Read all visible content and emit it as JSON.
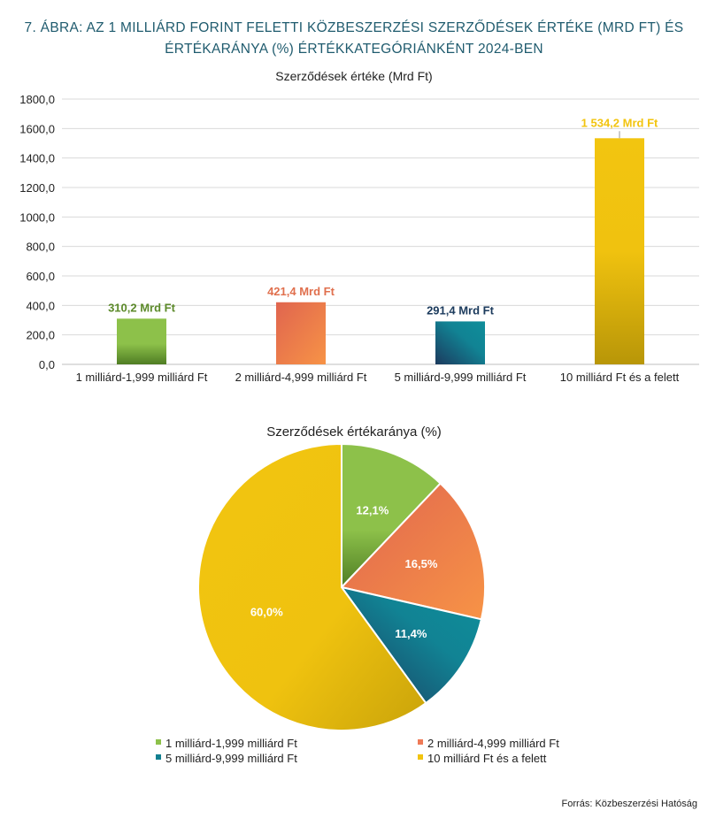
{
  "figure": {
    "title_line1": "7. ÁBRA: AZ 1 MILLIÁRD FORINT FELETTI KÖZBESZERZÉSI SZERZŐDÉSEK ÉRTÉKE (MRD FT) ÉS",
    "title_line2": "ÉRTÉKARÁNYA (%) ÉRTÉKKATEGÓRIÁNKÉNT  2024-BEN",
    "source": "Forrás: Közbeszerzési  Hatóság"
  },
  "chart_data": [
    {
      "type": "bar",
      "title": "Szerződések értéke (Mrd Ft)",
      "categories": [
        "1 milliárd-1,999 milliárd Ft",
        "2 milliárd-4,999 milliárd Ft",
        "5 milliárd-9,999 milliárd Ft",
        "10 milliárd Ft és a felett"
      ],
      "values": [
        310.2,
        421.4,
        291.4,
        1534.2
      ],
      "data_labels": [
        "310,2 Mrd Ft",
        "421,4 Mrd Ft",
        "291,4 Mrd Ft",
        "1 534,2 Mrd Ft"
      ],
      "ylim": [
        0,
        1800
      ],
      "yticks": [
        "0,0",
        "200,0",
        "400,0",
        "600,0",
        "800,0",
        "1000,0",
        "1200,0",
        "1400,0",
        "1600,0",
        "1800,0"
      ],
      "grid": true,
      "colors": [
        "#8dc14a",
        "#ef7a57",
        "#117f90",
        "#f2c40f"
      ],
      "label_colors": [
        "#5c8a2a",
        "#e0704e",
        "#1b3a5c",
        "#f2c40f"
      ]
    },
    {
      "type": "pie",
      "title": "Szerződések értékaránya (%)",
      "labels": [
        "1 milliárd-1,999 milliárd Ft",
        "2 milliárd-4,999 milliárd Ft",
        "5 milliárd-9,999 milliárd Ft",
        "10 milliárd Ft és a felett"
      ],
      "values": [
        12.1,
        16.5,
        11.4,
        60.0
      ],
      "data_labels": [
        "12,1%",
        "16,5%",
        "11,4%",
        "60,0%"
      ],
      "colors": [
        "#8dc14a",
        "#ef7a57",
        "#117f90",
        "#f2c40f"
      ],
      "legend": "bottom"
    }
  ]
}
